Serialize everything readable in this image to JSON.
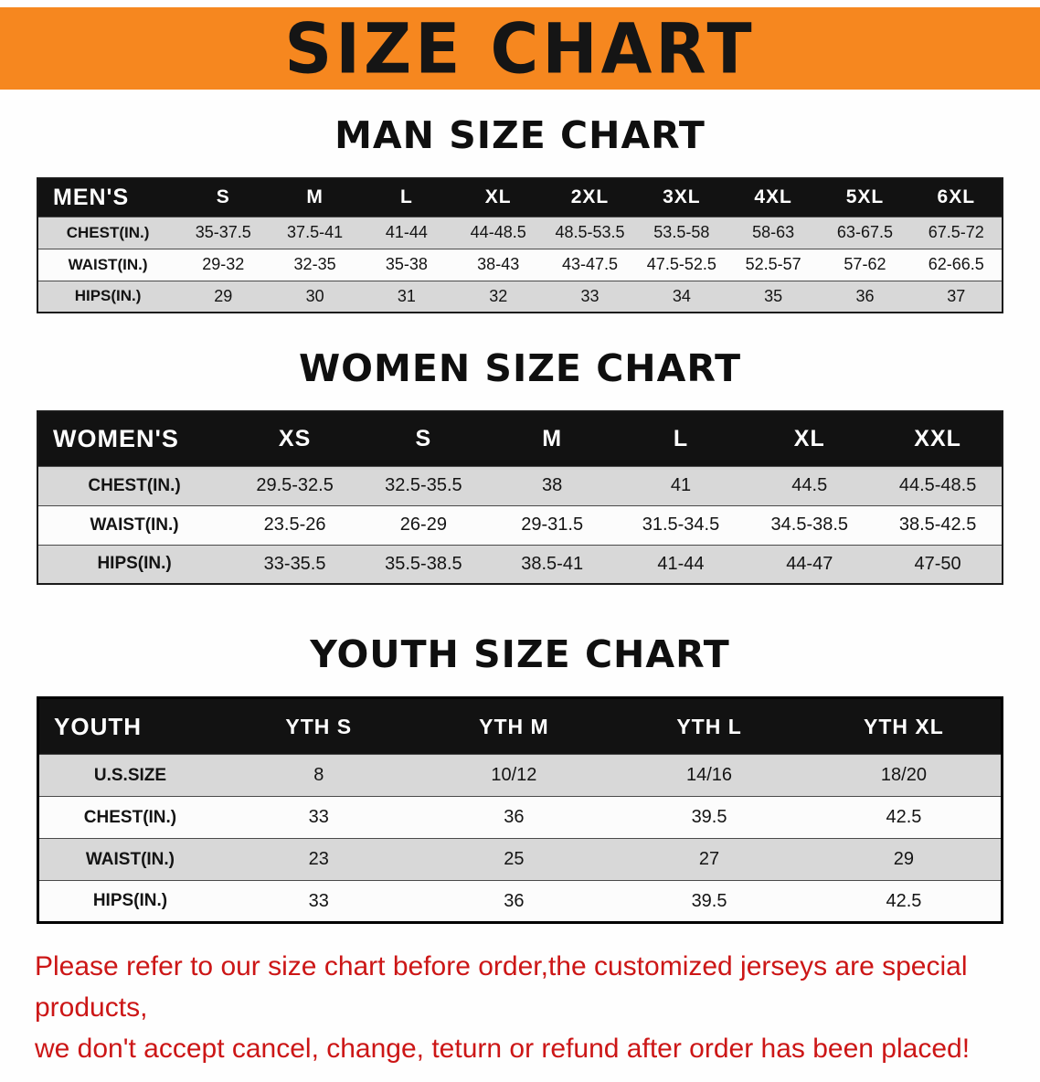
{
  "banner": {
    "title": "SIZE CHART",
    "background_color": "#f6871f",
    "text_color": "#151515"
  },
  "colors": {
    "table_header_bg": "#121212",
    "row_stripe": "#d8d8d8",
    "notice_red": "#cc1616"
  },
  "sections": {
    "men": {
      "heading": "MAN SIZE CHART",
      "table": {
        "header": [
          "MEN'S",
          "S",
          "M",
          "L",
          "XL",
          "2XL",
          "3XL",
          "4XL",
          "5XL",
          "6XL"
        ],
        "rows": [
          [
            "CHEST(IN.)",
            "35-37.5",
            "37.5-41",
            "41-44",
            "44-48.5",
            "48.5-53.5",
            "53.5-58",
            "58-63",
            "63-67.5",
            "67.5-72"
          ],
          [
            "WAIST(IN.)",
            "29-32",
            "32-35",
            "35-38",
            "38-43",
            "43-47.5",
            "47.5-52.5",
            "52.5-57",
            "57-62",
            "62-66.5"
          ],
          [
            "HIPS(IN.)",
            "29",
            "30",
            "31",
            "32",
            "33",
            "34",
            "35",
            "36",
            "37"
          ]
        ]
      }
    },
    "women": {
      "heading": "WOMEN SIZE CHART",
      "table": {
        "header": [
          "WOMEN'S",
          "XS",
          "S",
          "M",
          "L",
          "XL",
          "XXL"
        ],
        "rows": [
          [
            "CHEST(IN.)",
            "29.5-32.5",
            "32.5-35.5",
            "38",
            "41",
            "44.5",
            "44.5-48.5"
          ],
          [
            "WAIST(IN.)",
            "23.5-26",
            "26-29",
            "29-31.5",
            "31.5-34.5",
            "34.5-38.5",
            "38.5-42.5"
          ],
          [
            "HIPS(IN.)",
            "33-35.5",
            "35.5-38.5",
            "38.5-41",
            "41-44",
            "44-47",
            "47-50"
          ]
        ]
      }
    },
    "youth": {
      "heading": "YOUTH SIZE CHART",
      "table": {
        "header": [
          "YOUTH",
          "YTH S",
          "YTH M",
          "YTH L",
          "YTH XL"
        ],
        "rows": [
          [
            "U.S.SIZE",
            "8",
            "10/12",
            "14/16",
            "18/20"
          ],
          [
            "CHEST(IN.)",
            "33",
            "36",
            "39.5",
            "42.5"
          ],
          [
            "WAIST(IN.)",
            "23",
            "25",
            "27",
            "29"
          ],
          [
            "HIPS(IN.)",
            "33",
            "36",
            "39.5",
            "42.5"
          ]
        ]
      }
    }
  },
  "footer": {
    "line1": "Please refer to our size chart before order,the customized jerseys are special products,",
    "line2": "we don't accept cancel, change, teturn or refund after order has been placed!"
  }
}
